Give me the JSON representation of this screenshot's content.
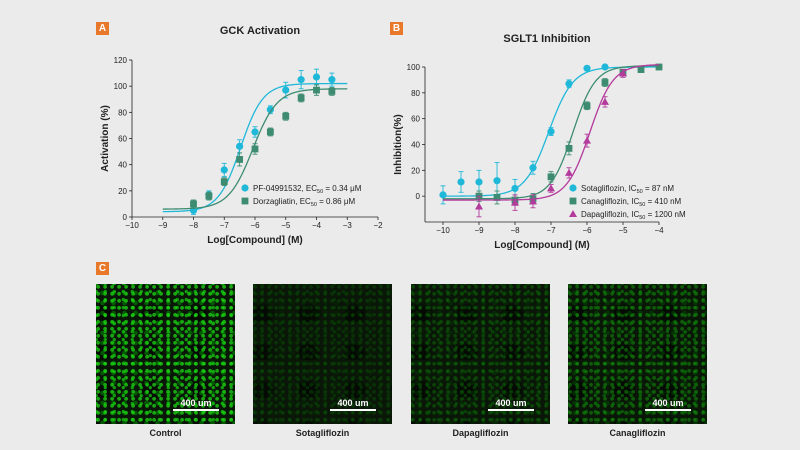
{
  "panels": {
    "a": "A",
    "b": "B",
    "c": "C"
  },
  "colors": {
    "cyan": "#1fb8d8",
    "green": "#3d8c72",
    "magenta": "#b43a9c",
    "badge": "#e8782a"
  },
  "chart_data": [
    {
      "type": "scatter",
      "fit": "sigmoidal dose-response",
      "title": "GCK Activation",
      "xlabel": "Log[Compound] (M)",
      "ylabel": "Activation (%)",
      "xlim": [
        -10,
        -2
      ],
      "ylim": [
        0,
        120
      ],
      "xticks": [
        -10,
        -9,
        -8,
        -7,
        -6,
        -5,
        -4,
        -3,
        -2
      ],
      "yticks": [
        0,
        20,
        40,
        60,
        80,
        100,
        120
      ],
      "legend_position": "bottom-right",
      "series": [
        {
          "name": "PF-04991532, EC50 = 0.34 μM",
          "marker": "circle",
          "color": "#1fb8d8",
          "fit_params": {
            "bottom": 4,
            "top": 102,
            "log_ec50": -6.47,
            "hill": 1.2
          },
          "x": [
            -8,
            -7.5,
            -7,
            -6.5,
            -6,
            -5.5,
            -5,
            -4.5,
            -4,
            -3.5
          ],
          "y": [
            5,
            17,
            36,
            54,
            65,
            82,
            97,
            105,
            107,
            105
          ],
          "err": [
            3,
            3,
            5,
            5,
            4,
            3,
            6,
            7,
            6,
            5
          ]
        },
        {
          "name": "Dorzagliatin, EC50 = 0.86 μM",
          "marker": "square",
          "color": "#3d8c72",
          "fit_params": {
            "bottom": 6,
            "top": 98,
            "log_ec50": -6.07,
            "hill": 1.1
          },
          "x": [
            -8,
            -7.5,
            -7,
            -6.5,
            -6,
            -5.5,
            -5,
            -4.5,
            -4,
            -3.5
          ],
          "y": [
            10,
            16,
            27,
            44,
            52,
            65,
            77,
            91,
            97,
            96
          ],
          "err": [
            3,
            3,
            3,
            5,
            4,
            3,
            3,
            3,
            4,
            3
          ]
        }
      ]
    },
    {
      "type": "scatter",
      "fit": "sigmoidal dose-response",
      "title": "SGLT1 Inhibition",
      "xlabel": "Log[Compound] (M)",
      "ylabel": "Inhibition(%)",
      "xlim": [
        -10.5,
        -4
      ],
      "ylim": [
        -20,
        100
      ],
      "xticks": [
        -10,
        -9,
        -8,
        -7,
        -6,
        -5,
        -4
      ],
      "yticks": [
        0,
        20,
        40,
        60,
        80,
        100
      ],
      "legend_position": "bottom-right",
      "series": [
        {
          "name": "Sotagliflozin, IC50 = 87 nM",
          "marker": "circle",
          "color": "#1fb8d8",
          "fit_params": {
            "bottom": 0,
            "top": 100,
            "log_ec50": -7.06,
            "hill": 1.3
          },
          "x": [
            -10,
            -9.5,
            -9,
            -8.5,
            -8,
            -7.5,
            -7,
            -6.5,
            -6,
            -5.5
          ],
          "y": [
            1,
            11,
            11,
            12,
            6,
            22,
            50,
            87,
            99,
            100
          ],
          "err": [
            7,
            8,
            9,
            14,
            7,
            5,
            3,
            3,
            1,
            1
          ]
        },
        {
          "name": "Canagliflozin, IC50 = 410 nM",
          "marker": "square",
          "color": "#3d8c72",
          "fit_params": {
            "bottom": -2,
            "top": 101,
            "log_ec50": -6.39,
            "hill": 1.4
          },
          "x": [
            -9,
            -8.5,
            -8,
            -7.5,
            -7,
            -6.5,
            -6,
            -5.5,
            -5,
            -4.5,
            -4
          ],
          "y": [
            0,
            -1,
            -3,
            -2,
            15,
            37,
            70,
            88,
            96,
            98,
            100
          ],
          "err": [
            4,
            5,
            4,
            4,
            4,
            5,
            3,
            3,
            2,
            2,
            2
          ]
        },
        {
          "name": "Dapagliflozin, IC50 = 1200 nM",
          "marker": "triangle",
          "color": "#b43a9c",
          "fit_params": {
            "bottom": -3,
            "top": 102,
            "log_ec50": -5.92,
            "hill": 1.35
          },
          "x": [
            -9,
            -8,
            -7.5,
            -7,
            -6.5,
            -6,
            -5.5,
            -5
          ],
          "y": [
            -8,
            -5,
            -4,
            6,
            18,
            43,
            73,
            95
          ],
          "err": [
            8,
            6,
            5,
            3,
            4,
            5,
            4,
            3
          ]
        }
      ]
    }
  ],
  "microscopy": {
    "scale_label": "400 um",
    "images": [
      {
        "label": "Control",
        "intensity": 1.0
      },
      {
        "label": "Sotagliflozin",
        "intensity": 0.32
      },
      {
        "label": "Dapagliflozin",
        "intensity": 0.45
      },
      {
        "label": "Canagliflozin",
        "intensity": 0.62
      }
    ]
  }
}
